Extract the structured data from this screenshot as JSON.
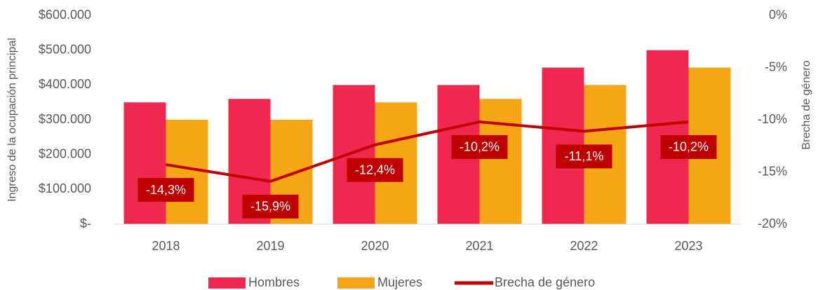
{
  "chart_data": {
    "type": "bar_line",
    "categories": [
      "2018",
      "2019",
      "2020",
      "2021",
      "2022",
      "2023"
    ],
    "y_label": "Ingreso de la ocupación principal",
    "y2_label": "Brecha de género",
    "series": [
      {
        "name": "Hombres",
        "type": "bar",
        "color": "#f02850",
        "values": [
          350000,
          360000,
          400000,
          400000,
          450000,
          500000
        ]
      },
      {
        "name": "Mujeres",
        "type": "bar",
        "color": "#f5a614",
        "values": [
          300000,
          300000,
          350000,
          360000,
          400000,
          450000
        ]
      },
      {
        "name": "Brecha de género",
        "type": "line",
        "axis": "y2",
        "color": "#c00000",
        "values": [
          -14.3,
          -15.9,
          -12.4,
          -10.2,
          -11.1,
          -10.2
        ],
        "value_labels": [
          "-14,3%",
          "-15,9%",
          "-12,4%",
          "-10,2%",
          "-11,1%",
          "-10,2%"
        ]
      }
    ],
    "ylim": [
      0,
      600000
    ],
    "yticks": [
      {
        "value": 0,
        "label": "$-"
      },
      {
        "value": 100000,
        "label": "$100.000"
      },
      {
        "value": 200000,
        "label": "$200.000"
      },
      {
        "value": 300000,
        "label": "$300.000"
      },
      {
        "value": 400000,
        "label": "$400.000"
      },
      {
        "value": 500000,
        "label": "$500.000"
      },
      {
        "value": 600000,
        "label": "$600.000"
      }
    ],
    "y2lim": [
      -20,
      0
    ],
    "y2ticks": [
      {
        "value": -20,
        "label": "-20%"
      },
      {
        "value": -15,
        "label": "-15%"
      },
      {
        "value": -10,
        "label": "-10%"
      },
      {
        "value": -5,
        "label": "-5%"
      },
      {
        "value": 0,
        "label": "0%"
      }
    ],
    "legend": "bottom"
  }
}
